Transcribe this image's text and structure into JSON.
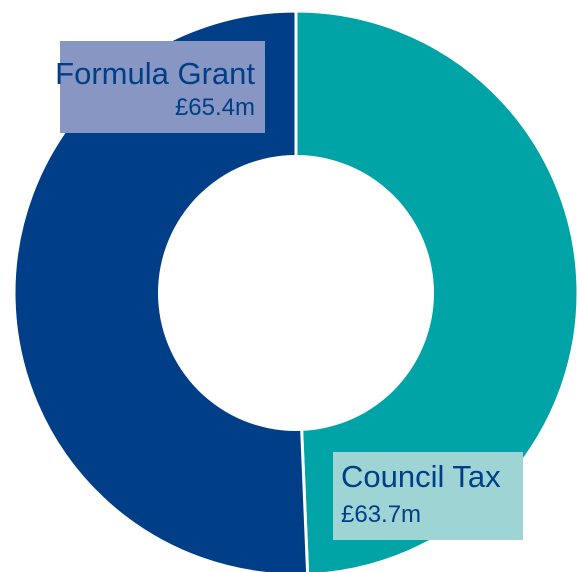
{
  "chart_data": {
    "type": "pie",
    "donut": true,
    "legend": "none",
    "slices": [
      {
        "label": "Council Tax",
        "value": 63.7,
        "display": "£63.7m",
        "color": "#00a3a6",
        "label_box_color": "#9fd4d4",
        "label_color": "#003f87"
      },
      {
        "label": "Formula Grant",
        "value": 65.4,
        "display": "£65.4m",
        "color": "#003f87",
        "label_box_color": "#8896c3",
        "label_color": "#003f87"
      }
    ]
  }
}
